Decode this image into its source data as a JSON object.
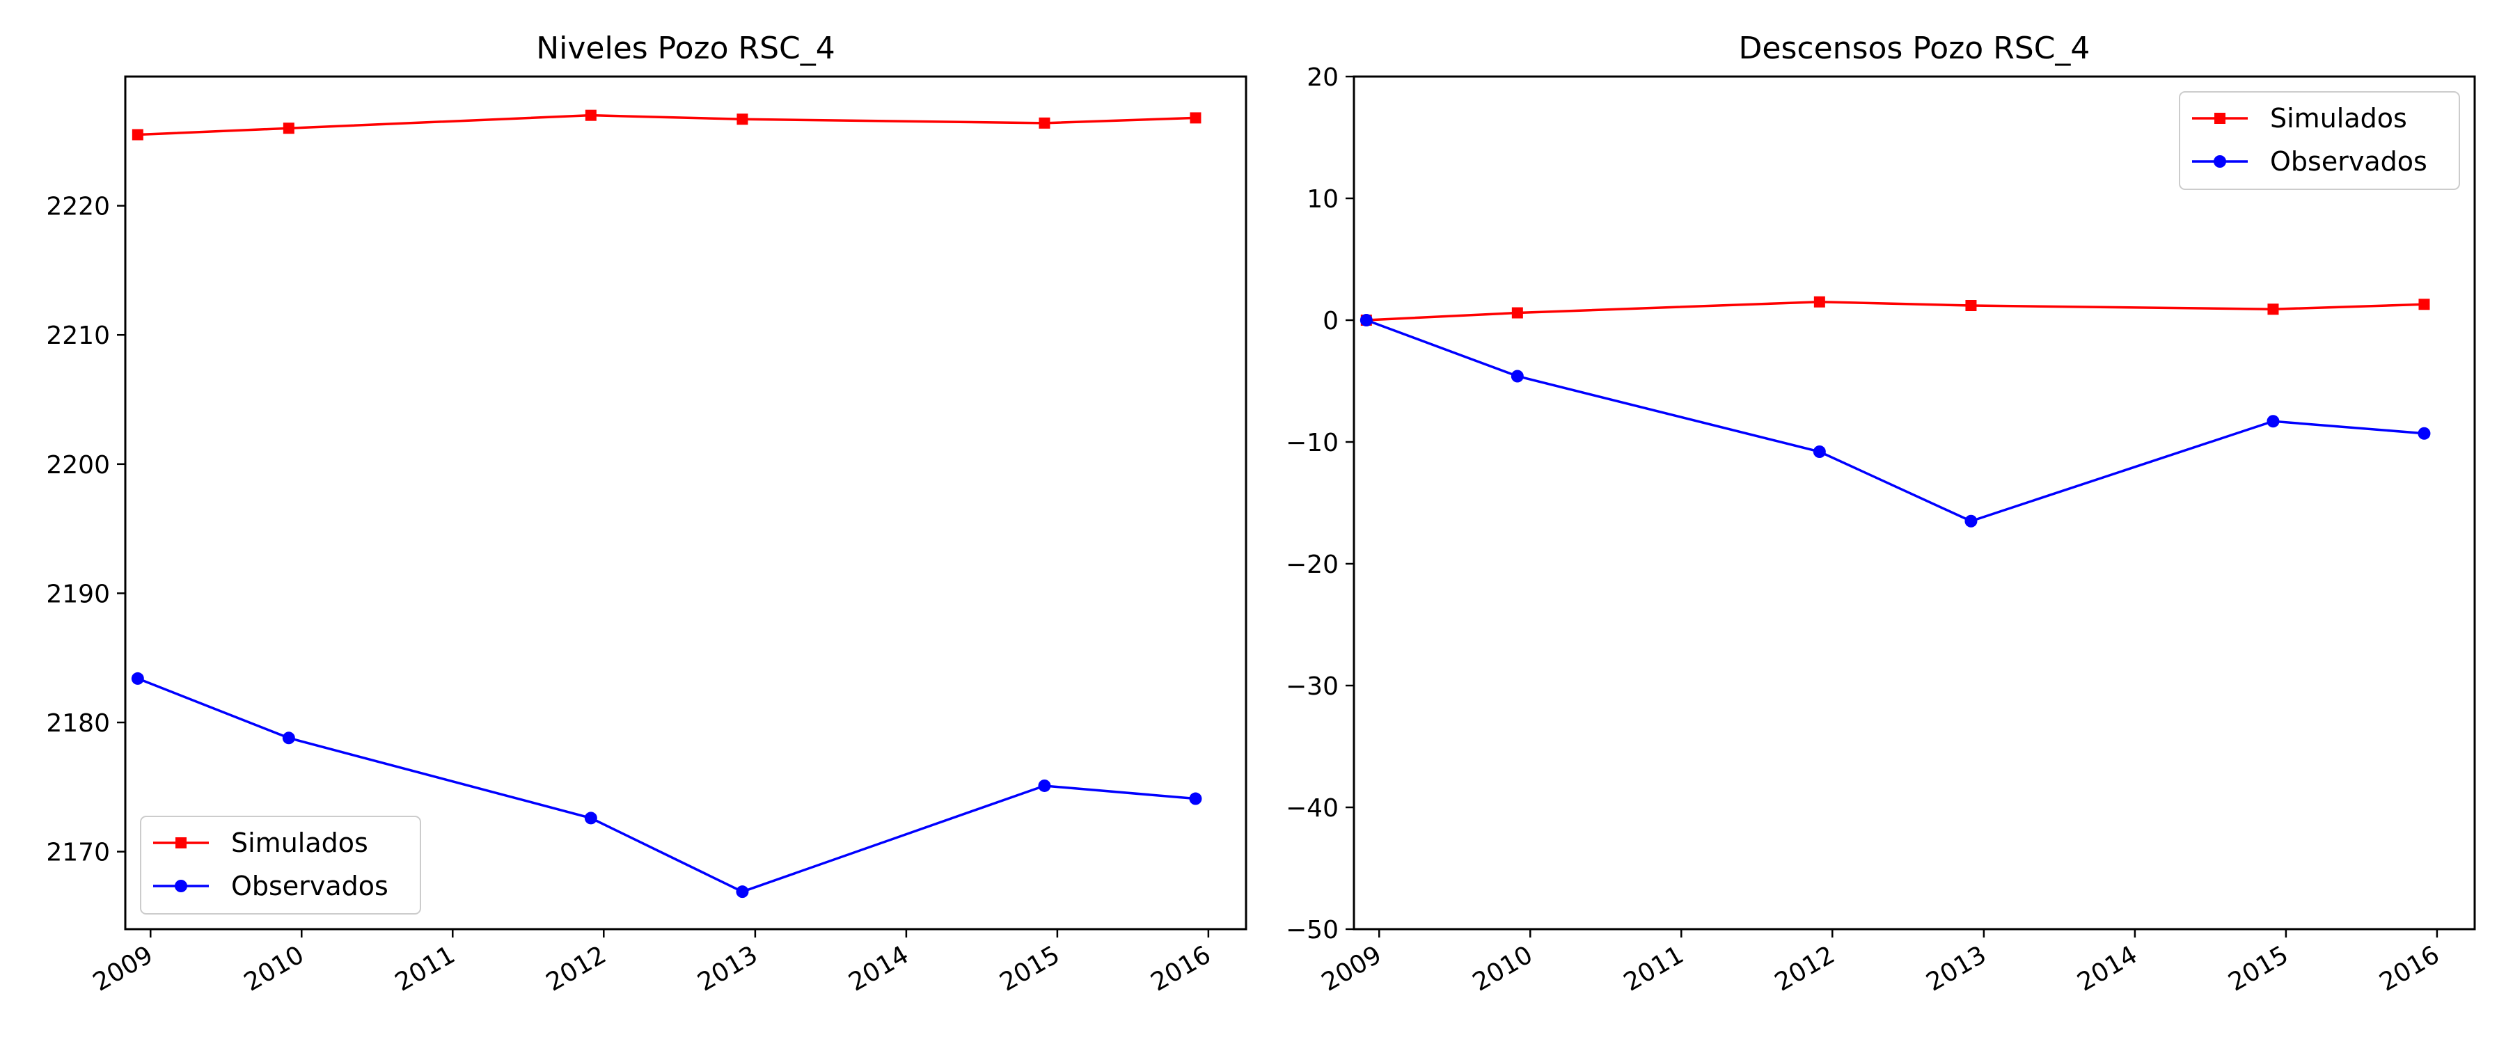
{
  "figure": {
    "background": "#ffffff"
  },
  "chart_data": [
    {
      "type": "line",
      "title": "Niveles Pozo RSC_4",
      "xlabel": "",
      "ylabel": "",
      "x_axis": "dates",
      "x": [
        "2008-12-01",
        "2009-12-01",
        "2011-12-01",
        "2012-12-01",
        "2014-12-01",
        "2015-12-01"
      ],
      "xticks": [
        "2009",
        "2010",
        "2011",
        "2012",
        "2013",
        "2014",
        "2015",
        "2016"
      ],
      "yticks": [
        2170,
        2180,
        2190,
        2200,
        2210,
        2220
      ],
      "xlim": [
        "2008-11-01",
        "2016-04-01"
      ],
      "ylim": [
        2164,
        2230
      ],
      "grid": false,
      "legend_position": "lower left",
      "series": [
        {
          "name": "Simulados",
          "color": "#ff0000",
          "marker": "square",
          "values": [
            2225.5,
            2226.0,
            2227.0,
            2226.7,
            2226.4,
            2226.8
          ]
        },
        {
          "name": "Observados",
          "color": "#0000ff",
          "marker": "circle",
          "values": [
            2183.4,
            2178.8,
            2172.6,
            2166.9,
            2175.1,
            2174.1
          ]
        }
      ]
    },
    {
      "type": "line",
      "title": "Descensos Pozo RSC_4",
      "xlabel": "",
      "ylabel": "",
      "x_axis": "dates",
      "x": [
        "2008-12-01",
        "2009-12-01",
        "2011-12-01",
        "2012-12-01",
        "2014-12-01",
        "2015-12-01"
      ],
      "xticks": [
        "2009",
        "2010",
        "2011",
        "2012",
        "2013",
        "2014",
        "2015",
        "2016"
      ],
      "yticks": [
        -50,
        -40,
        -30,
        -20,
        -10,
        0,
        10,
        20
      ],
      "xlim": [
        "2008-11-01",
        "2016-04-01"
      ],
      "ylim": [
        -50,
        20
      ],
      "grid": false,
      "legend_position": "upper right",
      "series": [
        {
          "name": "Simulados",
          "color": "#ff0000",
          "marker": "square",
          "values": [
            0.0,
            0.6,
            1.5,
            1.2,
            0.9,
            1.3
          ]
        },
        {
          "name": "Observados",
          "color": "#0000ff",
          "marker": "circle",
          "values": [
            0.0,
            -4.6,
            -10.8,
            -16.5,
            -8.3,
            -9.3
          ]
        }
      ]
    }
  ]
}
